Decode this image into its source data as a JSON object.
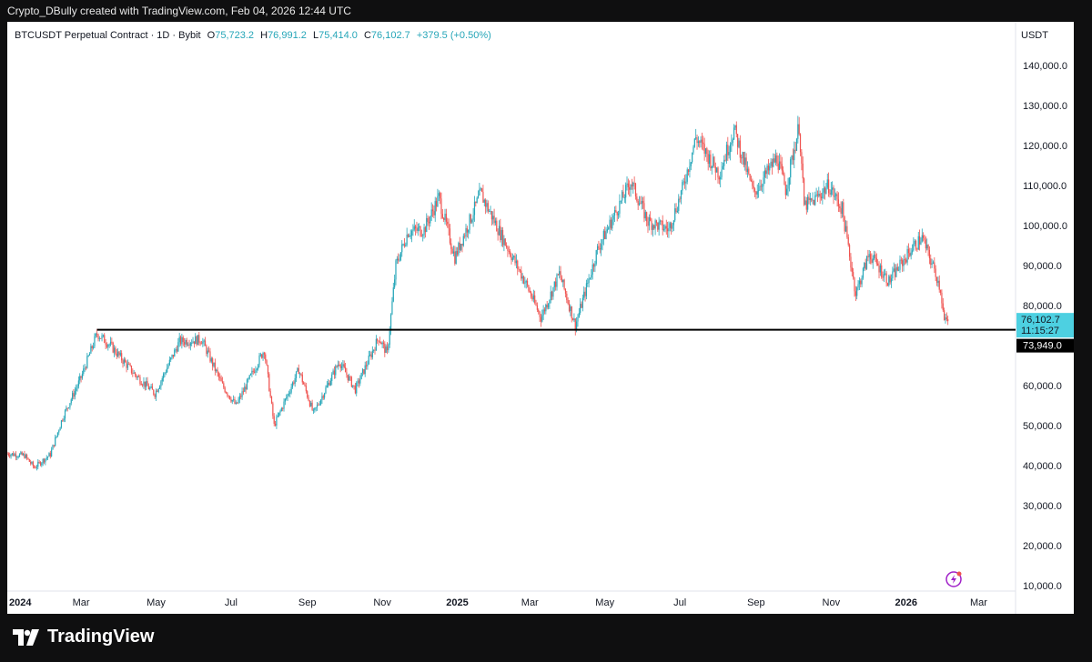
{
  "header": {
    "credit": "Crypto_DBully created with TradingView.com, Feb 04, 2026 12:44 UTC"
  },
  "legend": {
    "symbol": "BTCUSDT Perpetual Contract · 1D · Bybit",
    "o_label": "O",
    "o": "75,723.2",
    "h_label": "H",
    "h": "76,991.2",
    "l_label": "L",
    "l": "75,414.0",
    "c_label": "C",
    "c": "76,102.7",
    "change": "+379.5 (+0.50%)"
  },
  "price_scale": {
    "currency": "USDT",
    "current_price": "76,102.7",
    "countdown": "11:15:27",
    "line_price": "73,949.0"
  },
  "footer": {
    "brand": "TradingView"
  },
  "colors": {
    "up": "#26a6b8",
    "down": "#ef5350",
    "up_label": "#4dd0e1",
    "line": "#000000"
  },
  "chart_data": {
    "type": "candlestick",
    "title": "BTCUSDT Perpetual Contract · 1D · Bybit",
    "x_ticks": [
      "2024",
      "Mar",
      "May",
      "Jul",
      "Sep",
      "Nov",
      "2025",
      "Mar",
      "May",
      "Jul",
      "Sep",
      "Nov",
      "2026",
      "Mar"
    ],
    "y_ticks": [
      "140,000.0",
      "130,000.0",
      "120,000.0",
      "110,000.0",
      "100,000.0",
      "90,000.0",
      "80,000.0",
      "70,000.0",
      "60,000.0",
      "50,000.0",
      "40,000.0",
      "30,000.0",
      "20,000.0",
      "10,000.0"
    ],
    "ylim": [
      10000,
      140000
    ],
    "xlim": [
      "2024-01-01",
      "2026-03-31"
    ],
    "horizontal_line": {
      "price": 73949,
      "start": "2024-03-14"
    },
    "approx_close_path": [
      [
        "2024-01-01",
        43000
      ],
      [
        "2024-01-15",
        42500
      ],
      [
        "2024-01-23",
        39500
      ],
      [
        "2024-02-05",
        42800
      ],
      [
        "2024-02-15",
        52000
      ],
      [
        "2024-03-01",
        62000
      ],
      [
        "2024-03-14",
        73000
      ],
      [
        "2024-03-25",
        70000
      ],
      [
        "2024-04-13",
        63000
      ],
      [
        "2024-04-30",
        58000
      ],
      [
        "2024-05-20",
        71000
      ],
      [
        "2024-06-07",
        71500
      ],
      [
        "2024-06-24",
        60000
      ],
      [
        "2024-07-05",
        55000
      ],
      [
        "2024-07-28",
        69000
      ],
      [
        "2024-08-05",
        50000
      ],
      [
        "2024-08-25",
        64000
      ],
      [
        "2024-09-06",
        53000
      ],
      [
        "2024-09-27",
        66000
      ],
      [
        "2024-10-10",
        59000
      ],
      [
        "2024-10-29",
        72000
      ],
      [
        "2024-11-05",
        68000
      ],
      [
        "2024-11-12",
        90000
      ],
      [
        "2024-11-22",
        98500
      ],
      [
        "2024-12-05",
        99000
      ],
      [
        "2024-12-17",
        107000
      ],
      [
        "2024-12-30",
        92000
      ],
      [
        "2025-01-20",
        108000
      ],
      [
        "2025-02-05",
        98000
      ],
      [
        "2025-02-25",
        86000
      ],
      [
        "2025-03-10",
        77000
      ],
      [
        "2025-03-25",
        88000
      ],
      [
        "2025-04-07",
        75000
      ],
      [
        "2025-04-25",
        94000
      ],
      [
        "2025-05-22",
        111000
      ],
      [
        "2025-06-05",
        101000
      ],
      [
        "2025-06-22",
        99000
      ],
      [
        "2025-07-03",
        109000
      ],
      [
        "2025-07-14",
        122000
      ],
      [
        "2025-08-02",
        113000
      ],
      [
        "2025-08-14",
        124000
      ],
      [
        "2025-08-30",
        108000
      ],
      [
        "2025-09-18",
        117000
      ],
      [
        "2025-09-25",
        109000
      ],
      [
        "2025-10-06",
        125000
      ],
      [
        "2025-10-10",
        105000
      ],
      [
        "2025-10-17",
        106000
      ],
      [
        "2025-10-30",
        110000
      ],
      [
        "2025-11-10",
        104000
      ],
      [
        "2025-11-21",
        83000
      ],
      [
        "2025-12-02",
        93000
      ],
      [
        "2025-12-18",
        86000
      ],
      [
        "2026-01-05",
        94000
      ],
      [
        "2026-01-14",
        97000
      ],
      [
        "2026-01-25",
        88000
      ],
      [
        "2026-01-29",
        84000
      ],
      [
        "2026-02-01",
        76000
      ],
      [
        "2026-02-04",
        76102.7
      ]
    ]
  }
}
